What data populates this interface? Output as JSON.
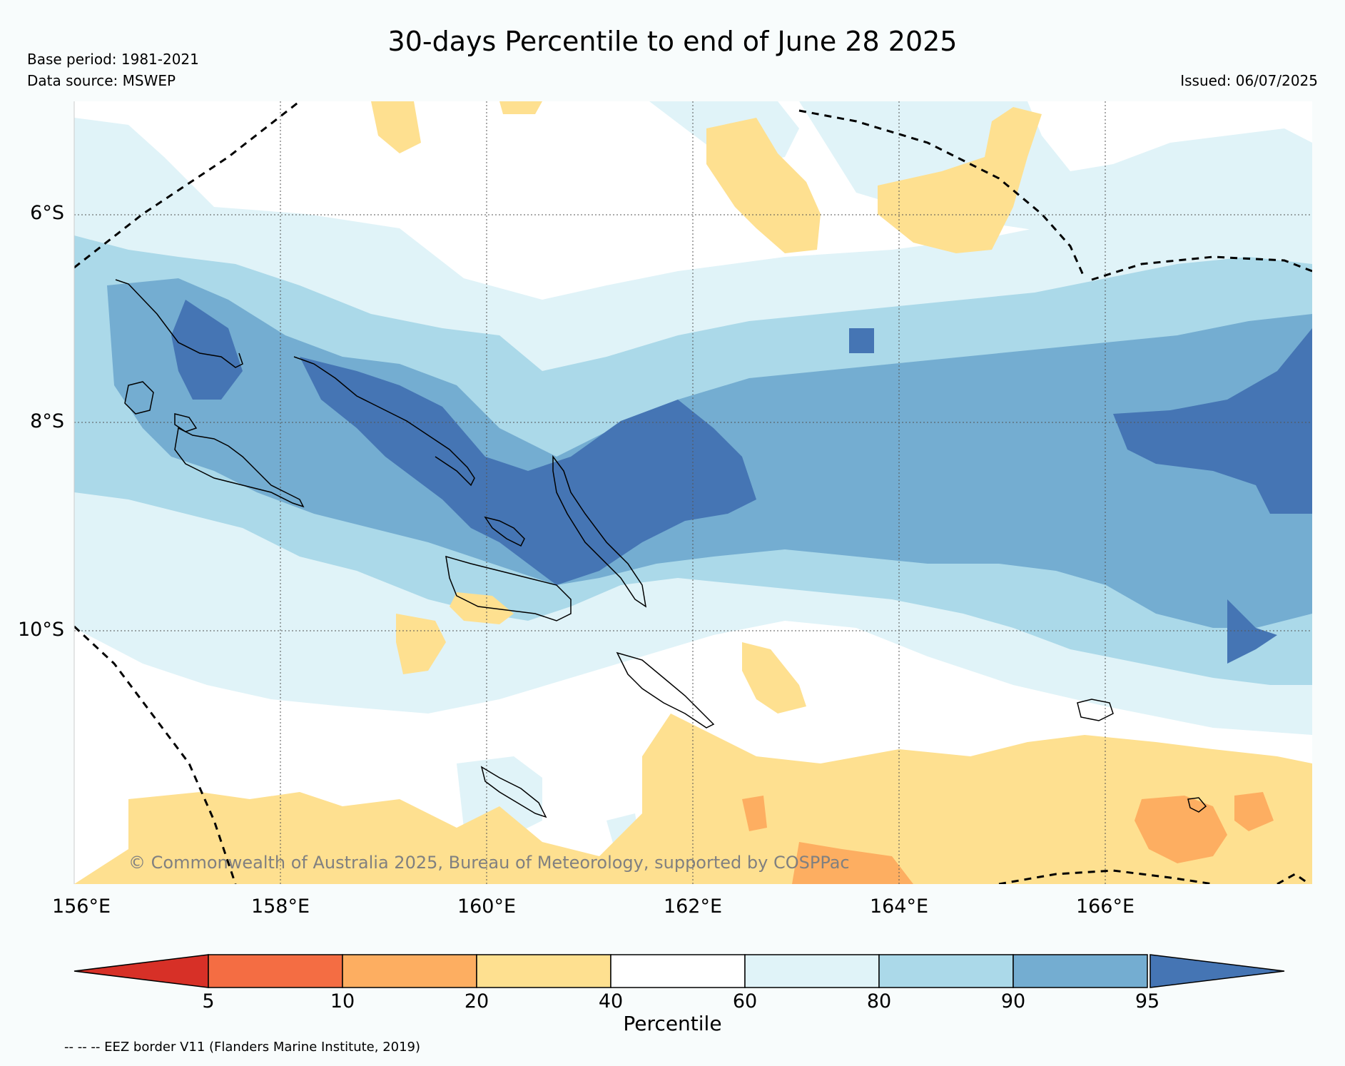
{
  "header": {
    "title": "30-days Percentile to end of June 28 2025",
    "base_period": "Base period: 1981-2021",
    "data_source": "Data source: MSWEP",
    "issued": "Issued: 06/07/2025"
  },
  "map": {
    "lat_labels": [
      "6°S",
      "8°S",
      "10°S"
    ],
    "lon_labels": [
      "156°E",
      "158°E",
      "160°E",
      "162°E",
      "164°E",
      "166°E"
    ],
    "copyright": "© Commonwealth of Australia 2025, Bureau of Meteorology, supported by COSPPac",
    "eez_note": "-- -- -- EEZ border V11 (Flanders Marine Institute, 2019)"
  },
  "legend": {
    "label": "Percentile",
    "ticks": [
      "5",
      "10",
      "20",
      "40",
      "60",
      "80",
      "90",
      "95"
    ],
    "colors": [
      "#d73027",
      "#f46d43",
      "#fdae61",
      "#fee090",
      "#ffffff",
      "#e0f3f8",
      "#abd9e9",
      "#74add1",
      "#4575b4"
    ]
  }
}
